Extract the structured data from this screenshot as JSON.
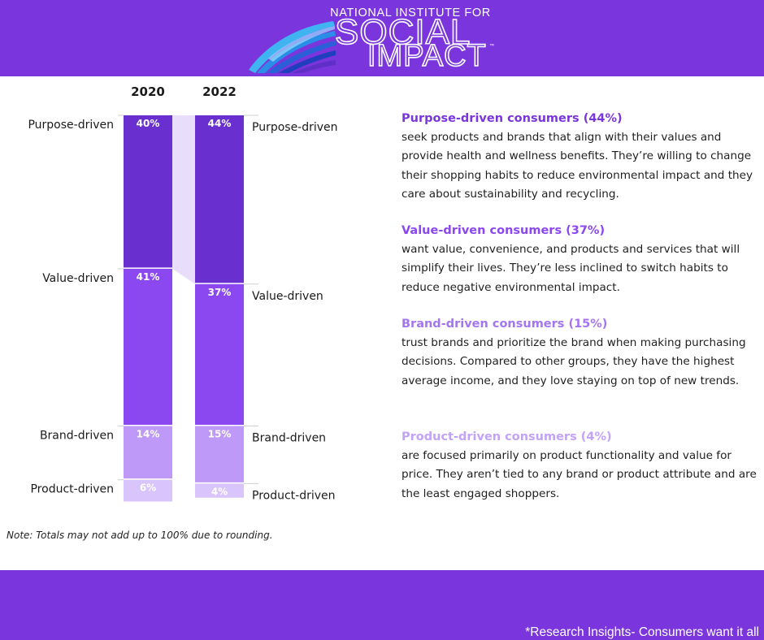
{
  "logo": {
    "top_text": "NATIONAL INSTITUTE FOR",
    "line1": "SOCIAL",
    "line2": "IMPACT",
    "mark": "™"
  },
  "colors": {
    "brand": "#7b35dc",
    "purpose": "#6a2fcf",
    "value": "#8b48f0",
    "brand_driven": "#bf99f7",
    "product": "#d9c4fb",
    "connector": "#e9ddfc",
    "title_purpose": "#7b35dc",
    "title_value": "#8b48f0",
    "title_brand": "#a575ef",
    "title_product": "#c3a3f7"
  },
  "chart_data": {
    "type": "bar",
    "stacked": true,
    "orientation": "vertical",
    "categories": [
      "2020",
      "2022"
    ],
    "series": [
      {
        "name": "Purpose-driven",
        "values": [
          40,
          44
        ],
        "labels": [
          "40%",
          "44%"
        ]
      },
      {
        "name": "Value-driven",
        "values": [
          41,
          37
        ],
        "labels": [
          "41%",
          "37%"
        ]
      },
      {
        "name": "Brand-driven",
        "values": [
          14,
          15
        ],
        "labels": [
          "14%",
          "15%"
        ]
      },
      {
        "name": "Product-driven",
        "values": [
          6,
          4
        ],
        "labels": [
          "6%",
          "4%"
        ]
      }
    ],
    "title": "",
    "xlabel": "",
    "ylabel": "",
    "ylim": [
      0,
      101
    ],
    "grid": false
  },
  "descriptions": [
    {
      "title": "Purpose-driven consumers (44%)",
      "body": "seek products and brands that align with their values and provide health and wellness benefits. They’re willing to change their shopping habits to reduce environmental impact and they care about sustainability and recycling."
    },
    {
      "title": "Value-driven consumers (37%)",
      "body": "want value, convenience, and products and services that will simplify their lives. They’re less inclined to switch habits to reduce negative environmental impact."
    },
    {
      "title": "Brand-driven consumers (15%)",
      "body": "trust brands and prioritize the brand when making purchasing decisions. Compared to other groups, they have the highest average income, and they love staying on top of new trends."
    },
    {
      "title": "Product-driven consumers (4%)",
      "body": "are focused primarily on product functionality and value for price. They aren’t tied to any brand or product attribute and are the least engaged shoppers."
    }
  ],
  "note": "Note: Totals may not add up to 100% due to rounding.",
  "footer": {
    "text": "*Research Insights- Consumers want it all"
  }
}
